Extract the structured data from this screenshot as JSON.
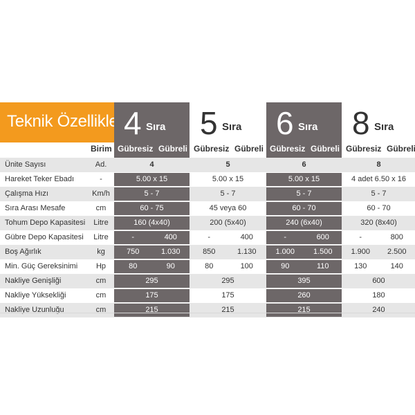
{
  "title": "Teknik Özellikler",
  "header": {
    "unit_label": "Birim",
    "sira_word": "Sıra",
    "sub_a": "Gübresiz",
    "sub_b": "Gübreli",
    "models": [
      "4",
      "5",
      "6",
      "8"
    ]
  },
  "rows": [
    {
      "label": "Ünite Sayısı",
      "unit": "Ad.",
      "values": [
        "4",
        "5",
        "6",
        "8"
      ]
    },
    {
      "label": "Hareket Teker Ebadı",
      "unit": "-",
      "values": [
        "5.00 x 15",
        "5.00 x 15",
        "5.00 x 15",
        "4 adet  6.50 x 16"
      ]
    },
    {
      "label": "Çalışma Hızı",
      "unit": "Km/h",
      "values": [
        "5 - 7",
        "5 - 7",
        "5 - 7",
        "5 - 7"
      ]
    },
    {
      "label": "Sıra Arası Mesafe",
      "unit": "cm",
      "values": [
        "60 - 75",
        "45 veya 60",
        "60 - 70",
        "60 - 70"
      ]
    },
    {
      "label": "Tohum Depo Kapasitesi",
      "unit": "Litre",
      "values": [
        "160 (4x40)",
        "200 (5x40)",
        "240 (6x40)",
        "320 (8x40)"
      ]
    },
    {
      "label": "Gübre Depo Kapasitesi",
      "unit": "Litre",
      "values": [
        [
          "-",
          "400"
        ],
        [
          "-",
          "400"
        ],
        [
          "-",
          "600"
        ],
        [
          "-",
          "800"
        ]
      ]
    },
    {
      "label": "Boş Ağırlık",
      "unit": "kg",
      "values": [
        [
          "750",
          "1.030"
        ],
        [
          "850",
          "1.130"
        ],
        [
          "1.000",
          "1.500"
        ],
        [
          "1.900",
          "2.500"
        ]
      ]
    },
    {
      "label": "Min. Güç Gereksinimi",
      "unit": "Hp",
      "values": [
        [
          "80",
          "90"
        ],
        [
          "80",
          "100"
        ],
        [
          "90",
          "110"
        ],
        [
          "130",
          "140"
        ]
      ]
    },
    {
      "label": "Nakliye Genişliği",
      "unit": "cm",
      "values": [
        "295",
        "295",
        "395",
        "600"
      ]
    },
    {
      "label": "Nakliye Yüksekliği",
      "unit": "cm",
      "values": [
        "175",
        "175",
        "260",
        "180"
      ]
    },
    {
      "label": "Nakliye Uzunluğu",
      "unit": "cm",
      "values": [
        "215",
        "215",
        "215",
        "240"
      ]
    }
  ]
}
